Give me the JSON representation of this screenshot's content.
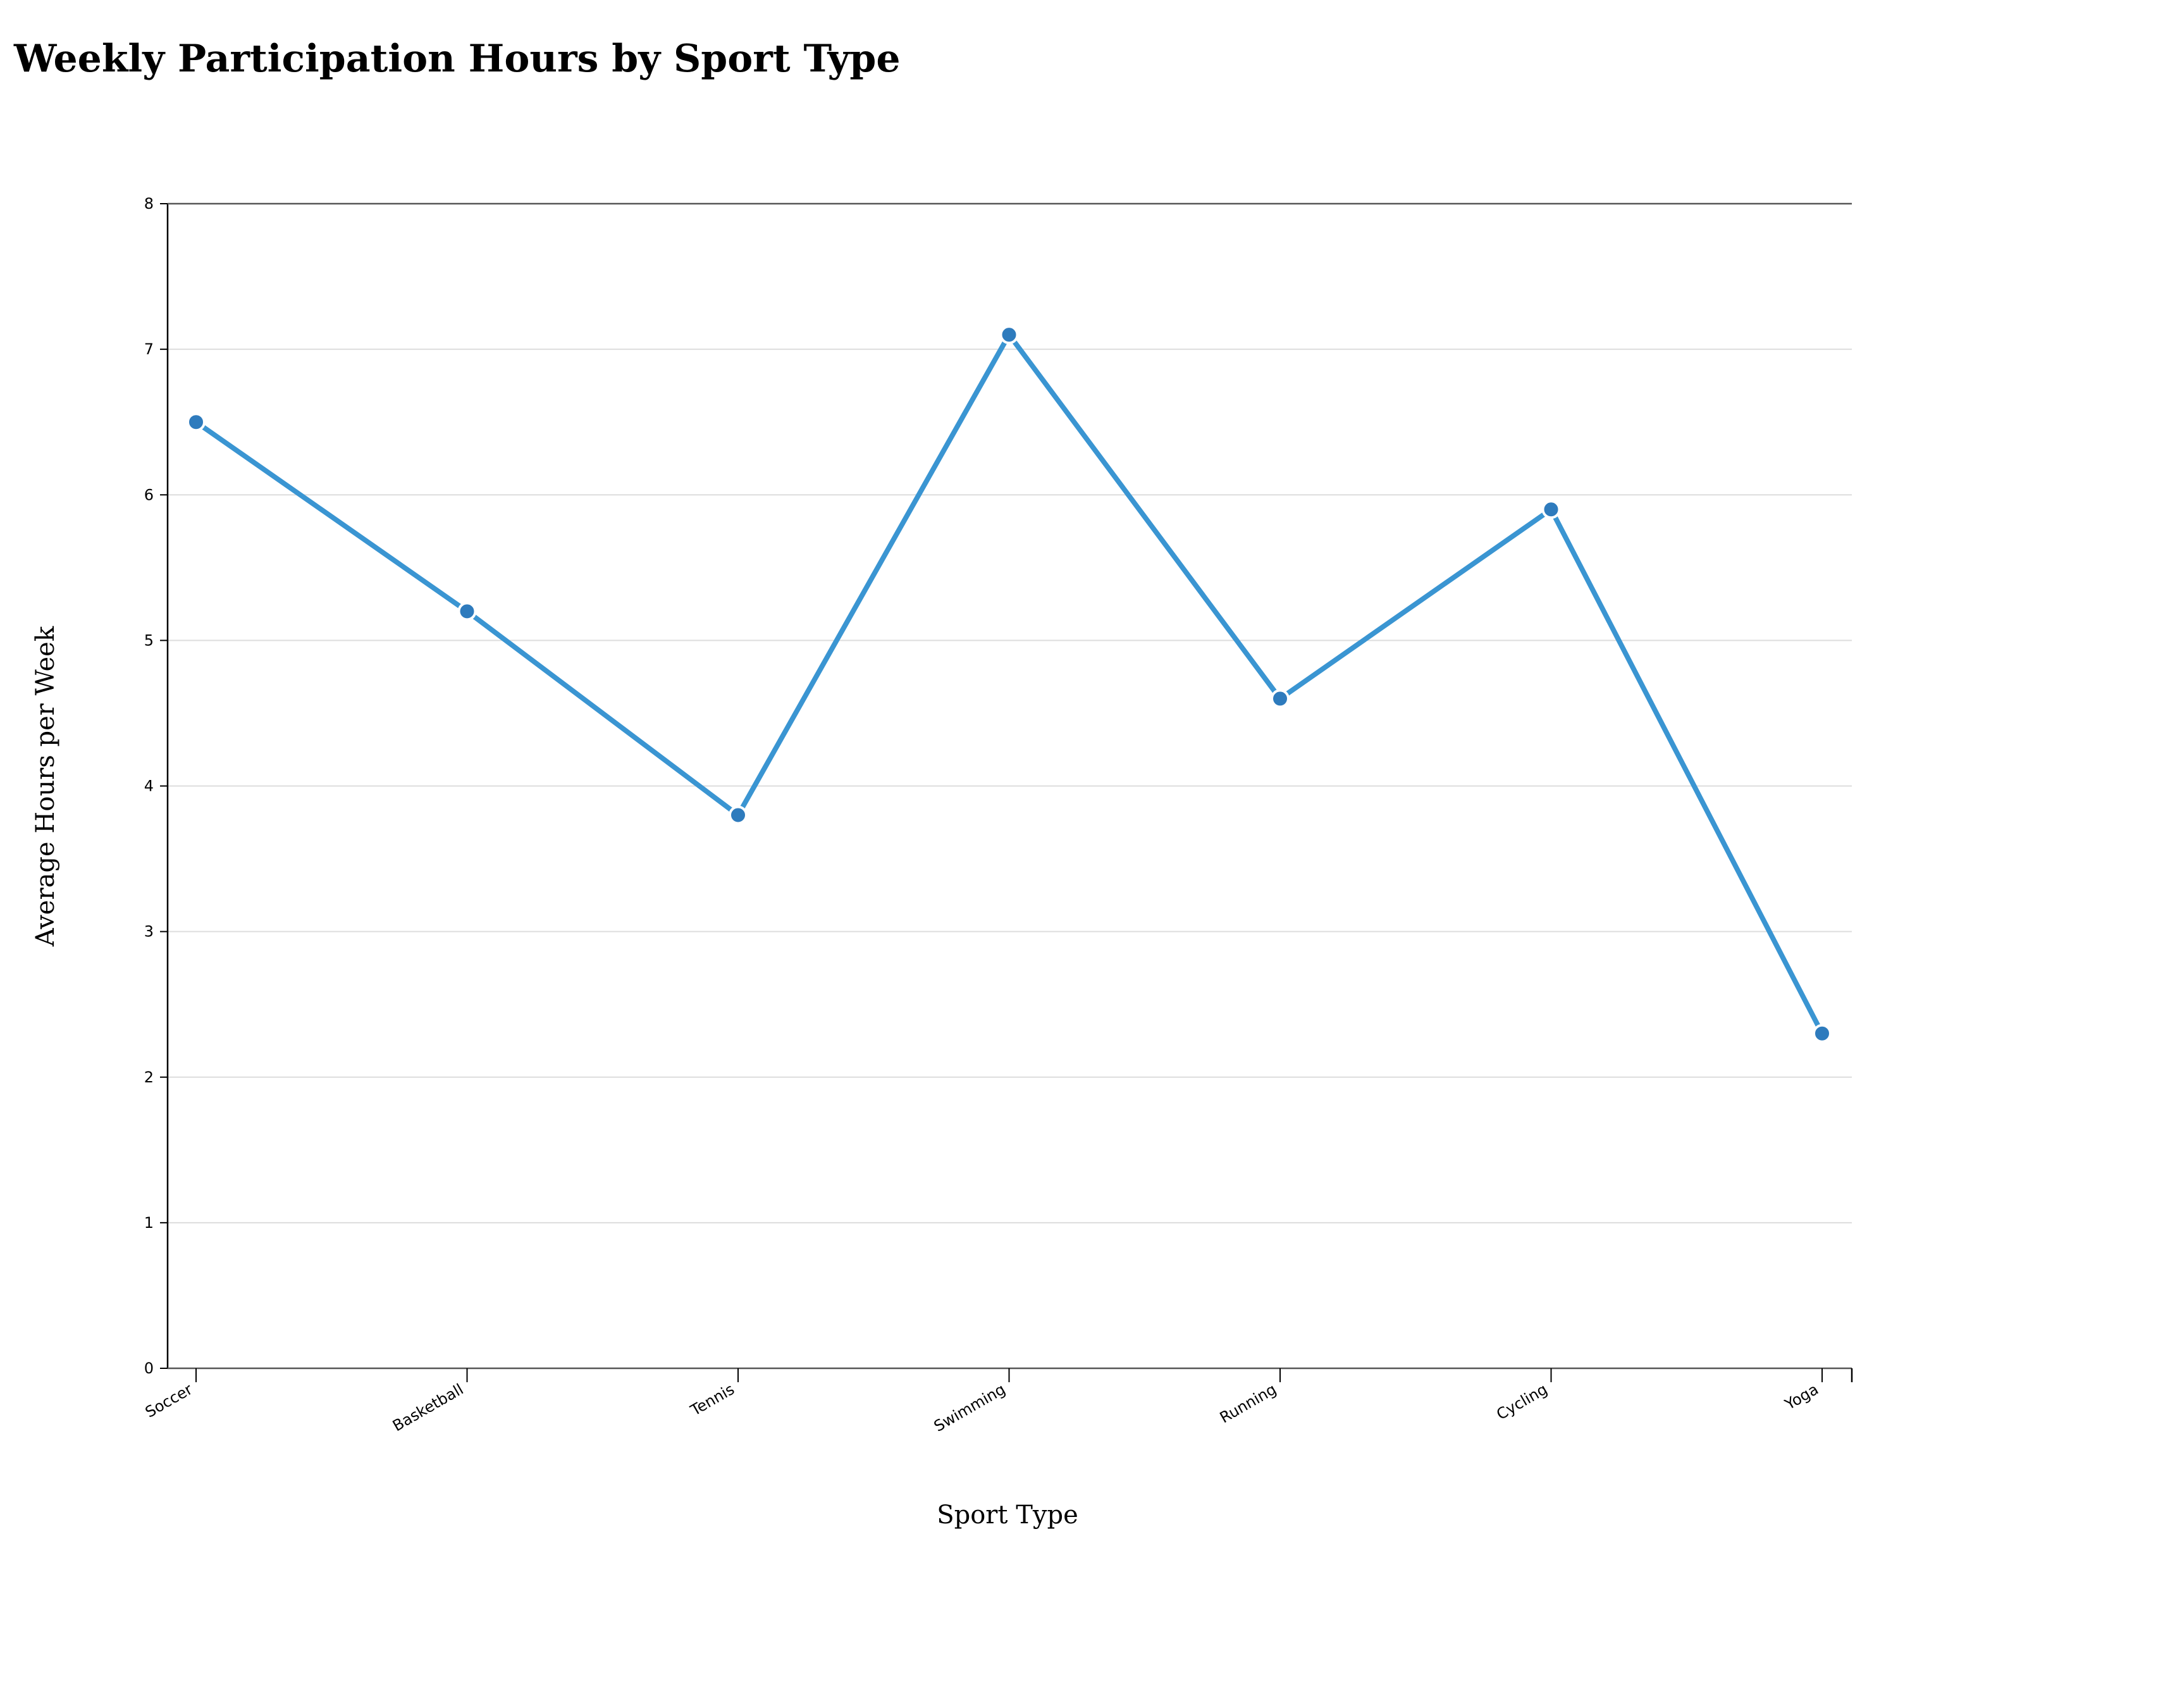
{
  "chart_data": {
    "type": "line",
    "title": "Weekly Participation Hours by Sport Type",
    "xlabel": "Sport Type",
    "ylabel": "Average Hours per Week",
    "categories": [
      "Soccer",
      "Basketball",
      "Tennis",
      "Swimming",
      "Running",
      "Cycling",
      "Yoga"
    ],
    "series": [
      {
        "values": [
          6.5,
          5.2,
          3.8,
          7.1,
          4.6,
          5.9,
          2.3
        ]
      }
    ],
    "ylim": [
      0,
      8
    ],
    "yticks": [
      "0",
      "1",
      "2",
      "3",
      "4",
      "5",
      "6",
      "7",
      "8"
    ],
    "grid": true,
    "line_color": "#3a95d2",
    "marker_color": "#2e7bbd",
    "grid_color": "#dddddd"
  }
}
